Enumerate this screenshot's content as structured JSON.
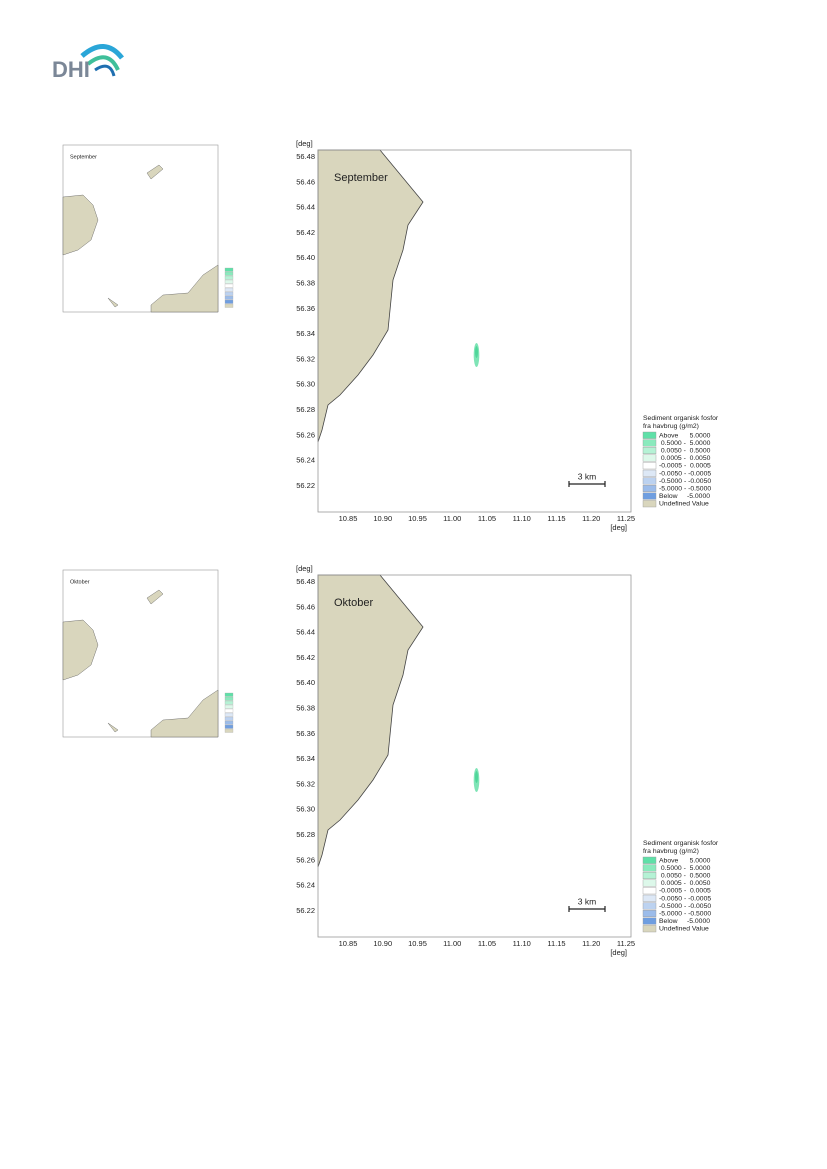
{
  "logo": "DHI",
  "panels": [
    {
      "title": "September",
      "axis_unit": "[deg]",
      "yticks": [
        "56.48",
        "56.46",
        "56.44",
        "56.42",
        "56.40",
        "56.38",
        "56.36",
        "56.34",
        "56.32",
        "56.30",
        "56.28",
        "56.26",
        "56.24",
        "56.22"
      ],
      "xticks": [
        "10.85",
        "10.90",
        "10.95",
        "11.00",
        "11.05",
        "11.10",
        "11.15",
        "11.20",
        "11.25"
      ],
      "scale": "3 km"
    },
    {
      "title": "Oktober",
      "axis_unit": "[deg]",
      "yticks": [
        "56.48",
        "56.46",
        "56.44",
        "56.42",
        "56.40",
        "56.38",
        "56.36",
        "56.34",
        "56.32",
        "56.30",
        "56.28",
        "56.26",
        "56.24",
        "56.22"
      ],
      "xticks": [
        "10.85",
        "10.90",
        "10.95",
        "11.00",
        "11.05",
        "11.10",
        "11.15",
        "11.20",
        "11.25"
      ],
      "scale": "3 km"
    }
  ],
  "legend": {
    "title": [
      "Sediment organisk fosfor",
      "fra havbrug (g/m2)"
    ],
    "items": [
      {
        "label": "Above      5.0000",
        "color": "#5fe0a8"
      },
      {
        "label": " 0.5000 -  5.0000",
        "color": "#8aeabd"
      },
      {
        "label": " 0.0050 -  0.5000",
        "color": "#b5f2d5"
      },
      {
        "label": " 0.0005 -  0.0050",
        "color": "#ddf8ea"
      },
      {
        "label": "-0.0005 -  0.0005",
        "color": "#ffffff"
      },
      {
        "label": "-0.0050 - -0.0005",
        "color": "#dde8f6"
      },
      {
        "label": "-0.5000 - -0.0050",
        "color": "#bcd2f0"
      },
      {
        "label": "-5.0000 - -0.5000",
        "color": "#9cbcea"
      },
      {
        "label": "Below     -5.0000",
        "color": "#6f9ee0"
      },
      {
        "label": "Undefined Value",
        "color": "#d9d6bd"
      }
    ]
  }
}
